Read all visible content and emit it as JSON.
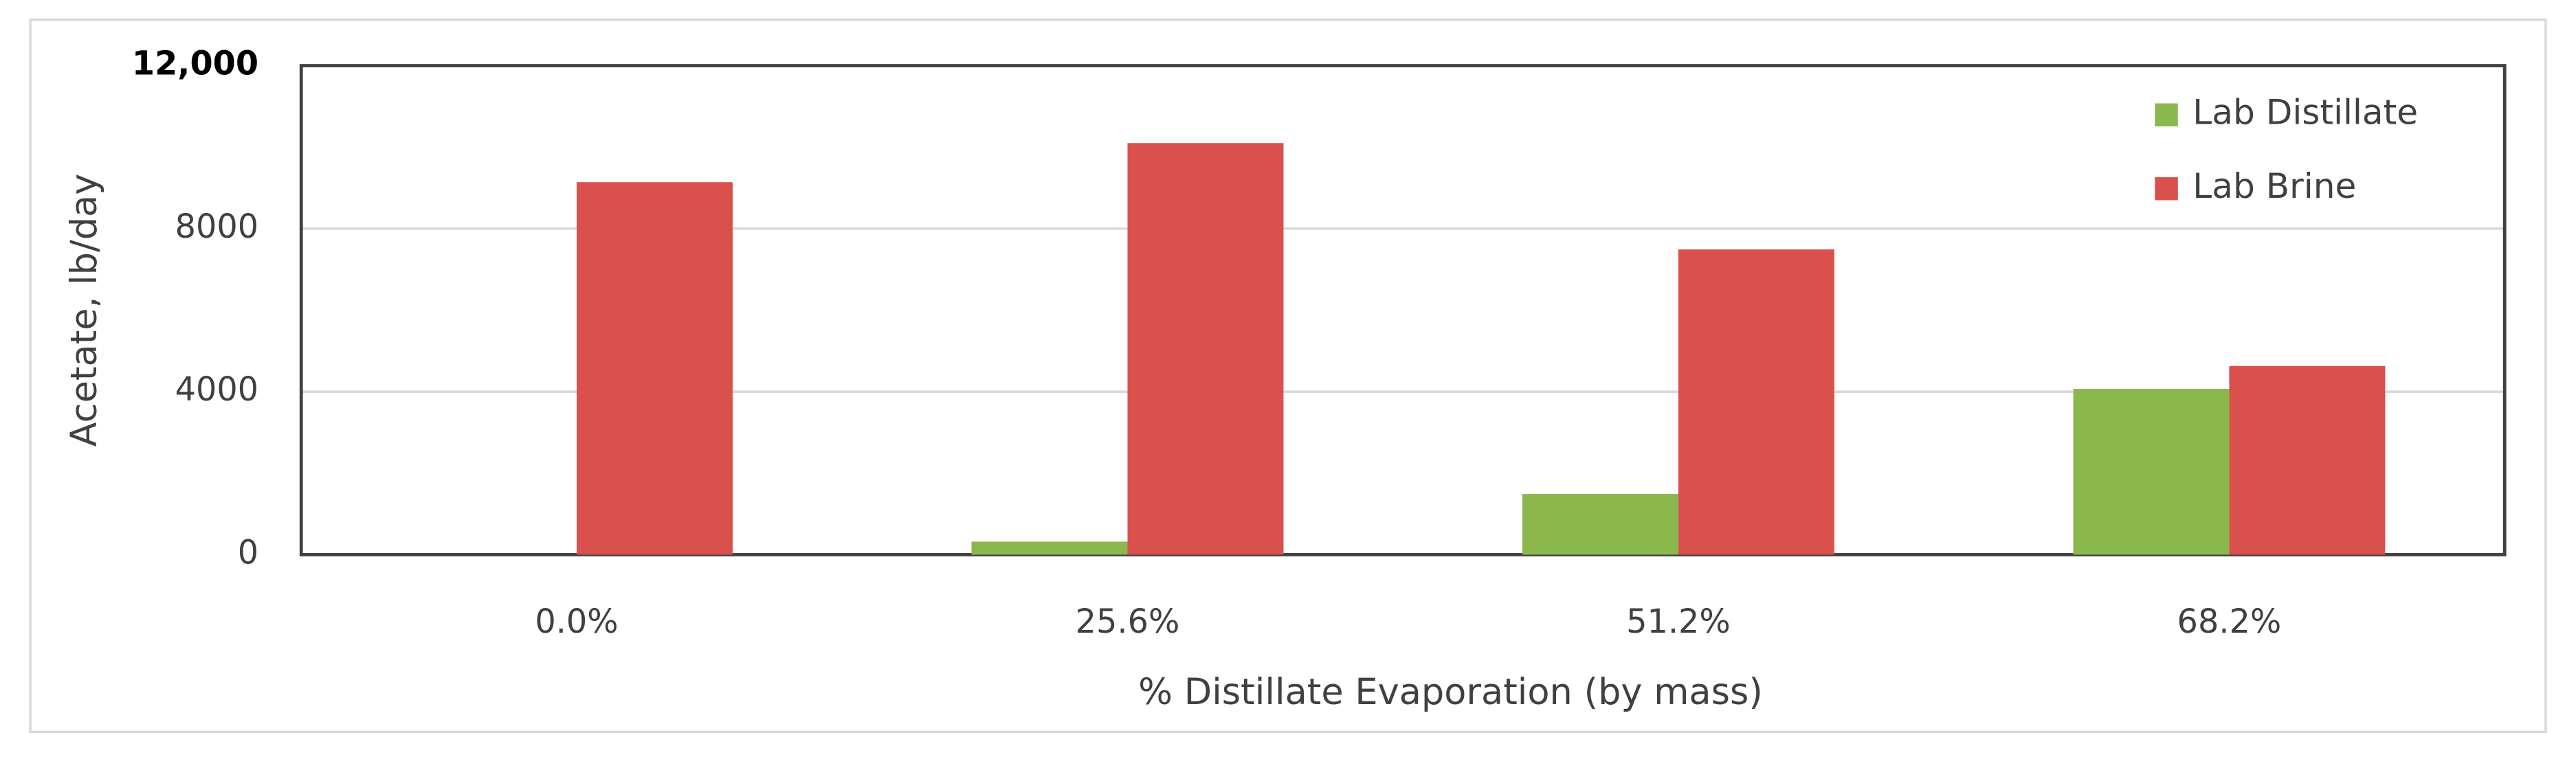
{
  "chart_data": {
    "type": "bar",
    "categories": [
      "0.0%",
      "25.6%",
      "51.2%",
      "68.2%"
    ],
    "series": [
      {
        "name": "Lab Distillate",
        "color": "#8ab84c",
        "values": [
          0,
          320,
          1490,
          4070
        ]
      },
      {
        "name": "Lab Brine",
        "color": "#d9504c",
        "values": [
          9140,
          10100,
          7490,
          4630
        ]
      }
    ],
    "xlabel": "% Distillate Evaporation (by mass)",
    "ylabel": "Acetate, lb/day",
    "ylim": [
      0,
      12000
    ],
    "yticks": [
      0,
      4000,
      8000,
      {
        "value": 12000,
        "label": "12,000"
      }
    ],
    "grid": true,
    "legend": "top-right"
  }
}
